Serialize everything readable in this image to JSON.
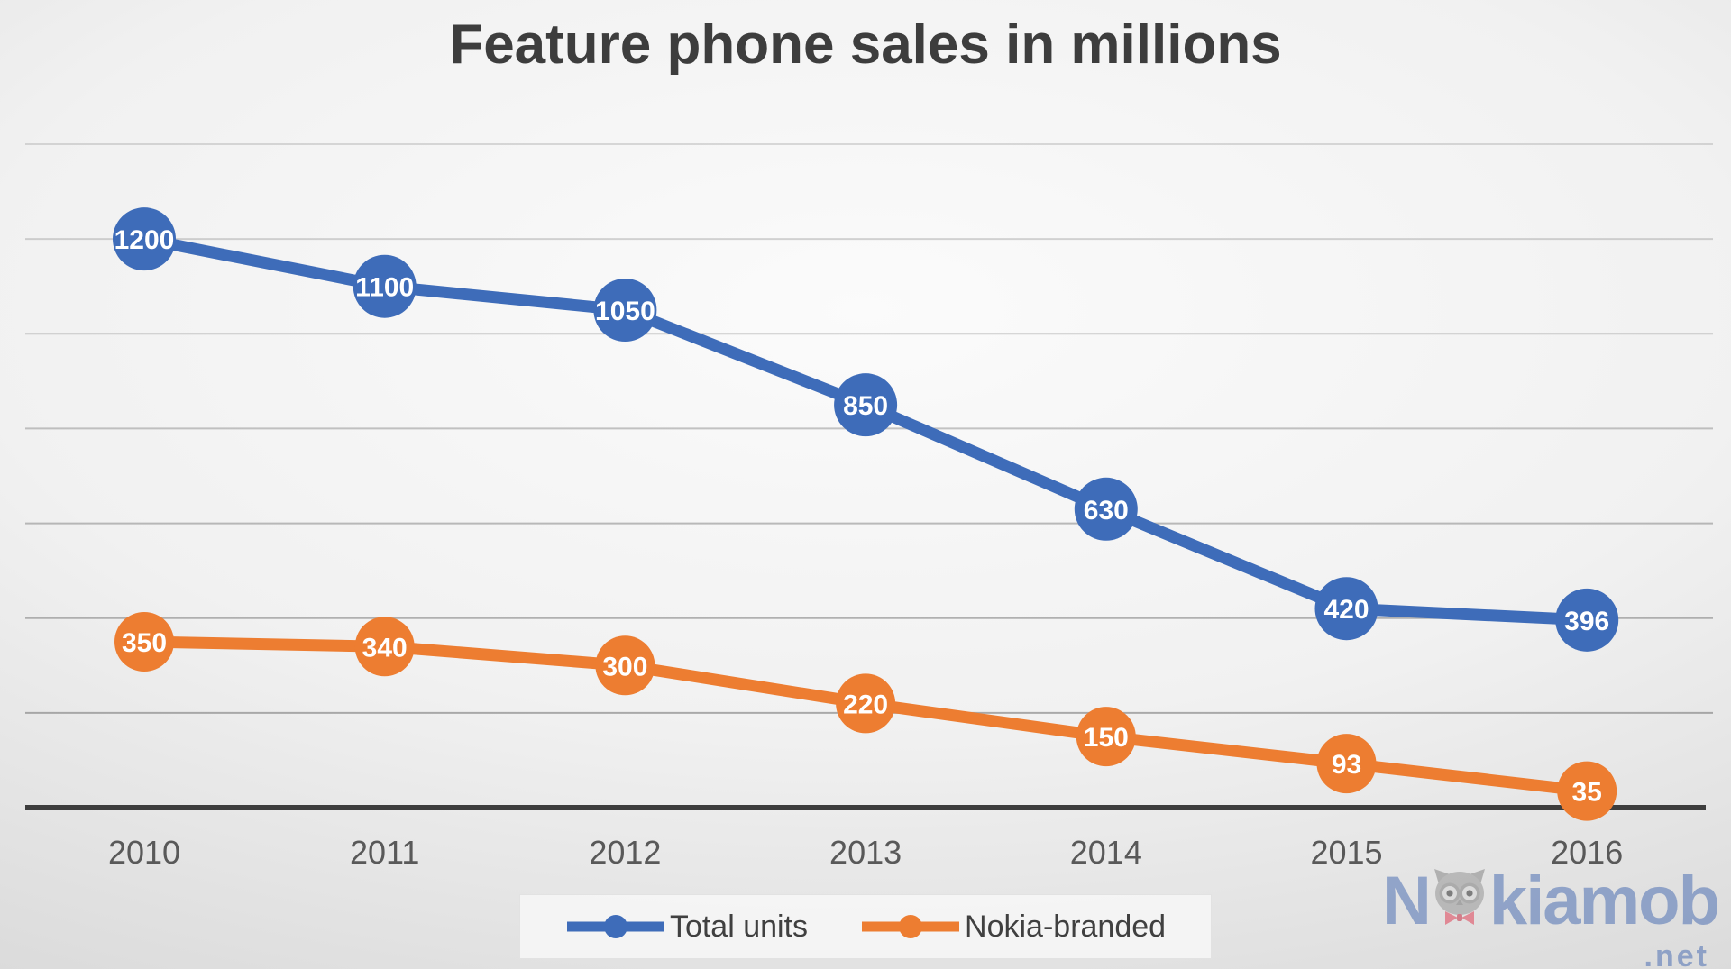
{
  "chart_data": {
    "type": "line",
    "title": "Feature phone sales in millions",
    "categories": [
      "2010",
      "2011",
      "2012",
      "2013",
      "2014",
      "2015",
      "2016"
    ],
    "series": [
      {
        "name": "Total units",
        "color": "#3E6CB9",
        "values": [
          1200,
          1100,
          1050,
          850,
          630,
          420,
          396
        ]
      },
      {
        "name": "Nokia-branded",
        "color": "#ED7D31",
        "values": [
          350,
          340,
          300,
          220,
          150,
          93,
          35
        ]
      }
    ],
    "xlabel": "",
    "ylabel": "",
    "ylim": [
      0,
      1400
    ],
    "grid": true,
    "grid_step": 200,
    "y_axis_labels_visible": false,
    "data_labels": "inside markers",
    "data_label_color": "#ffffff",
    "legend_position": "bottom-center"
  },
  "watermark": {
    "part1": "N",
    "part2": "kiamob",
    "tld": ".net",
    "color": "#4d6fb3"
  }
}
